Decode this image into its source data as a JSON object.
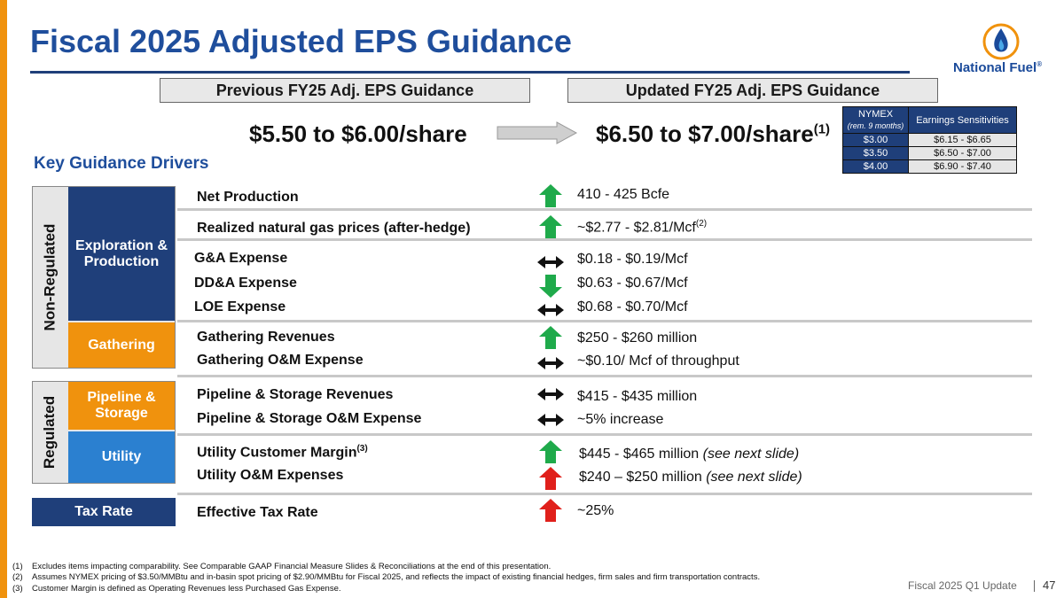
{
  "title": "Fiscal 2025 Adjusted EPS Guidance",
  "logo": {
    "text": "National Fuel",
    "trademark": "®"
  },
  "previous": {
    "header": "Previous FY25 Adj. EPS Guidance",
    "value": "$5.50 to $6.00/share"
  },
  "updated": {
    "header": "Updated FY25 Adj. EPS Guidance",
    "value": "$6.50 to $7.00/share",
    "footnote": "(1)"
  },
  "sensitivity": {
    "col1": "NYMEX",
    "col1_sub": "(rem. 9 months)",
    "col2": "Earnings Sensitivities",
    "rows": [
      {
        "price": "$3.00",
        "range": "$6.15 - $6.65"
      },
      {
        "price": "$3.50",
        "range": "$6.50 - $7.00"
      },
      {
        "price": "$4.00",
        "range": "$6.90 - $7.40"
      }
    ]
  },
  "key_drivers_label": "Key Guidance Drivers",
  "groups": {
    "non_regulated": "Non-Regulated",
    "regulated": "Regulated",
    "ep": "Exploration & Production",
    "gathering": "Gathering",
    "pipeline": "Pipeline & Storage",
    "utility": "Utility",
    "tax": "Tax Rate"
  },
  "rows": [
    {
      "label": "Net Production",
      "value": "410 - 425 Bcfe",
      "indicator": "up-green"
    },
    {
      "label": "Realized natural gas prices (after-hedge)",
      "value": "~$2.77 - $2.81/Mcf",
      "value_sup": "(2)",
      "indicator": "up-green"
    },
    {
      "label": "G&A Expense",
      "value": "$0.18 - $0.19/Mcf",
      "indicator": "flat"
    },
    {
      "label": "DD&A Expense",
      "value": "$0.63 - $0.67/Mcf",
      "indicator": "down-green"
    },
    {
      "label": "LOE Expense",
      "value": "$0.68 - $0.70/Mcf",
      "indicator": "flat"
    },
    {
      "label": "Gathering Revenues",
      "value": "$250 - $260 million",
      "indicator": "up-green"
    },
    {
      "label": "Gathering O&M Expense",
      "value": "~$0.10/ Mcf of throughput",
      "indicator": "flat"
    },
    {
      "label": "Pipeline & Storage Revenues",
      "value": "$415 - $435 million",
      "indicator": "flat"
    },
    {
      "label": "Pipeline & Storage O&M Expense",
      "value": "~5% increase",
      "indicator": "flat"
    },
    {
      "label": "Utility Customer Margin",
      "label_sup": "(3)",
      "value": "$445 - $465 million",
      "value_italic": "(see next slide)",
      "indicator": "up-green"
    },
    {
      "label": "Utility O&M Expenses",
      "value": "$240 – $250 million",
      "value_italic": "(see next slide)",
      "indicator": "up-red"
    },
    {
      "label": "Effective Tax Rate",
      "value": "~25%",
      "indicator": "up-red"
    }
  ],
  "footnotes": [
    {
      "num": "(1)",
      "text": "Excludes items impacting comparability. See Comparable GAAP Financial Measure Slides & Reconciliations at the end of this presentation."
    },
    {
      "num": "(2)",
      "text": "Assumes NYMEX pricing of $3.50/MMBtu and in-basin spot pricing of $2.90/MMBtu for Fiscal 2025, and reflects the impact of existing financial hedges, firm sales and firm transportation contracts."
    },
    {
      "num": "(3)",
      "text": "Customer Margin is defined as Operating Revenues less Purchased Gas Expense."
    }
  ],
  "footer": {
    "text": "Fiscal 2025 Q1 Update",
    "page": "47"
  },
  "colors": {
    "navy": "#1f3f7a",
    "orange": "#f0920d",
    "blue": "#2b80d0",
    "title_blue": "#1f4e9c",
    "green": "#1faa4b",
    "red": "#e0201b"
  }
}
